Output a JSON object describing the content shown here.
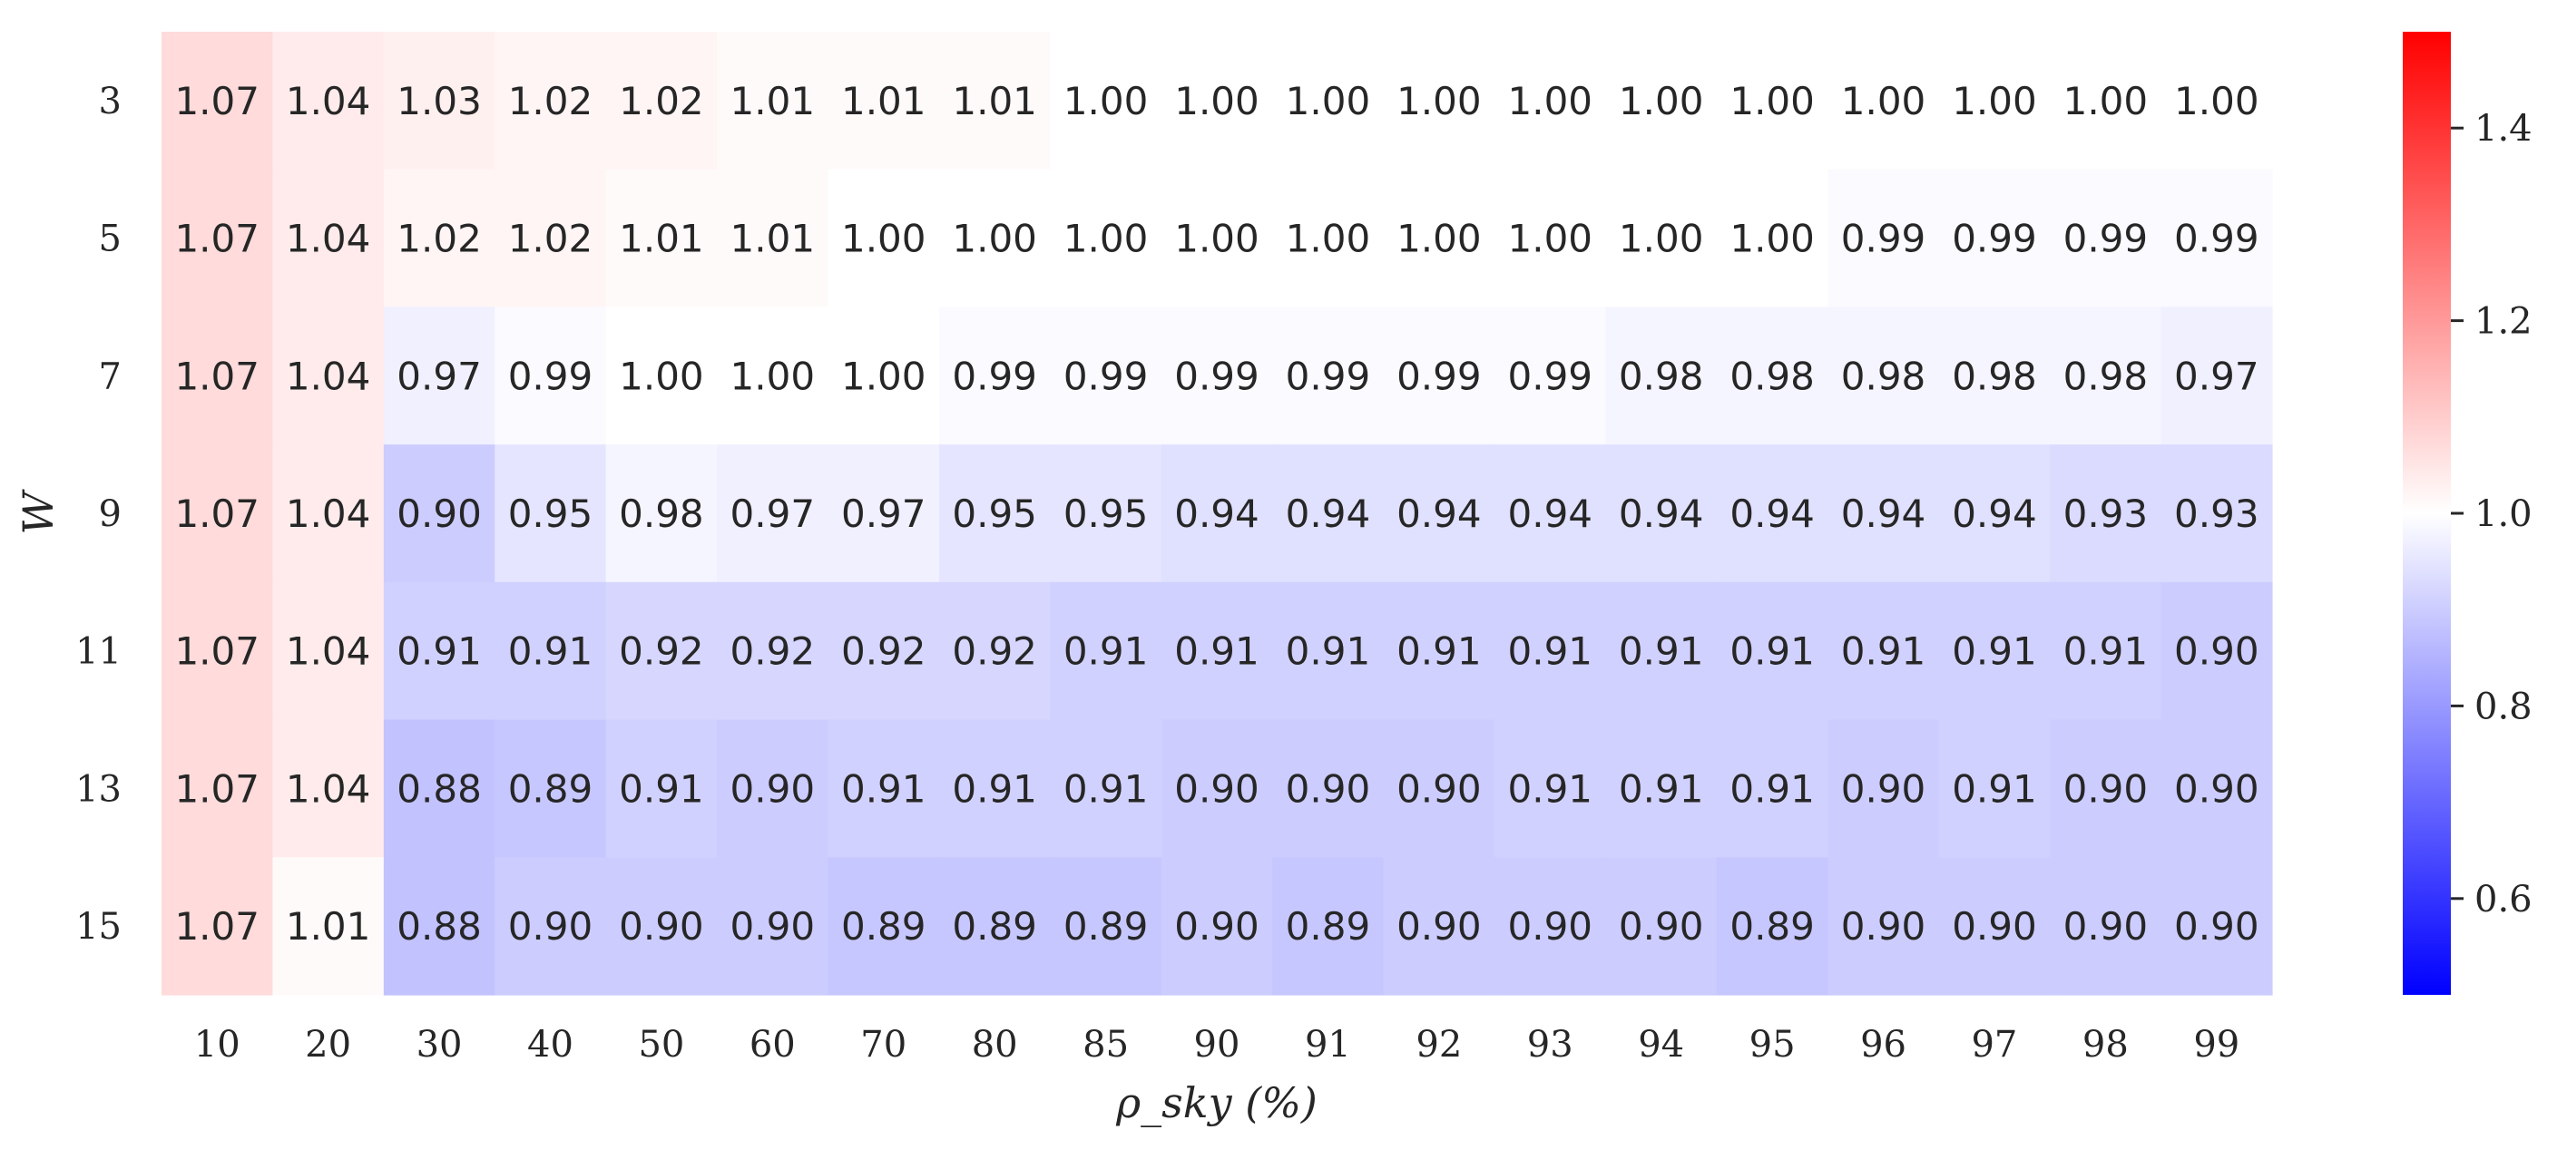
{
  "chart_data": {
    "type": "heatmap",
    "title": "",
    "xlabel": "ρ_sky (%)",
    "ylabel": "W",
    "x_categories": [
      "10",
      "20",
      "30",
      "40",
      "50",
      "60",
      "70",
      "80",
      "85",
      "90",
      "91",
      "92",
      "93",
      "94",
      "95",
      "96",
      "97",
      "98",
      "99"
    ],
    "y_categories": [
      "3",
      "5",
      "7",
      "9",
      "11",
      "13",
      "15"
    ],
    "values": [
      [
        1.07,
        1.04,
        1.03,
        1.02,
        1.02,
        1.01,
        1.01,
        1.01,
        1.0,
        1.0,
        1.0,
        1.0,
        1.0,
        1.0,
        1.0,
        1.0,
        1.0,
        1.0,
        1.0
      ],
      [
        1.07,
        1.04,
        1.02,
        1.02,
        1.01,
        1.01,
        1.0,
        1.0,
        1.0,
        1.0,
        1.0,
        1.0,
        1.0,
        1.0,
        1.0,
        0.99,
        0.99,
        0.99,
        0.99
      ],
      [
        1.07,
        1.04,
        0.97,
        0.99,
        1.0,
        1.0,
        1.0,
        0.99,
        0.99,
        0.99,
        0.99,
        0.99,
        0.99,
        0.98,
        0.98,
        0.98,
        0.98,
        0.98,
        0.97
      ],
      [
        1.07,
        1.04,
        0.9,
        0.95,
        0.98,
        0.97,
        0.97,
        0.95,
        0.95,
        0.94,
        0.94,
        0.94,
        0.94,
        0.94,
        0.94,
        0.94,
        0.94,
        0.93,
        0.93
      ],
      [
        1.07,
        1.04,
        0.91,
        0.91,
        0.92,
        0.92,
        0.92,
        0.92,
        0.91,
        0.91,
        0.91,
        0.91,
        0.91,
        0.91,
        0.91,
        0.91,
        0.91,
        0.91,
        0.9
      ],
      [
        1.07,
        1.04,
        0.88,
        0.89,
        0.91,
        0.9,
        0.91,
        0.91,
        0.91,
        0.9,
        0.9,
        0.9,
        0.91,
        0.91,
        0.91,
        0.9,
        0.91,
        0.9,
        0.9
      ],
      [
        1.07,
        1.01,
        0.88,
        0.9,
        0.9,
        0.9,
        0.89,
        0.89,
        0.89,
        0.9,
        0.89,
        0.9,
        0.9,
        0.9,
        0.89,
        0.9,
        0.9,
        0.9,
        0.9
      ]
    ],
    "colormap": "bwr",
    "color_range": [
      0.5,
      1.5
    ],
    "center": 1.0,
    "colorbar_ticks": [
      0.6,
      0.8,
      1.0,
      1.2,
      1.4
    ],
    "colorbar_tick_labels": [
      "0.6",
      "0.8",
      "1.0",
      "1.2",
      "1.4"
    ],
    "colors": {
      "low": "#0000ff",
      "mid": "#ffffff",
      "high": "#ff0000",
      "text": "#262626"
    },
    "annotation_format": "0.00",
    "grid": false
  }
}
